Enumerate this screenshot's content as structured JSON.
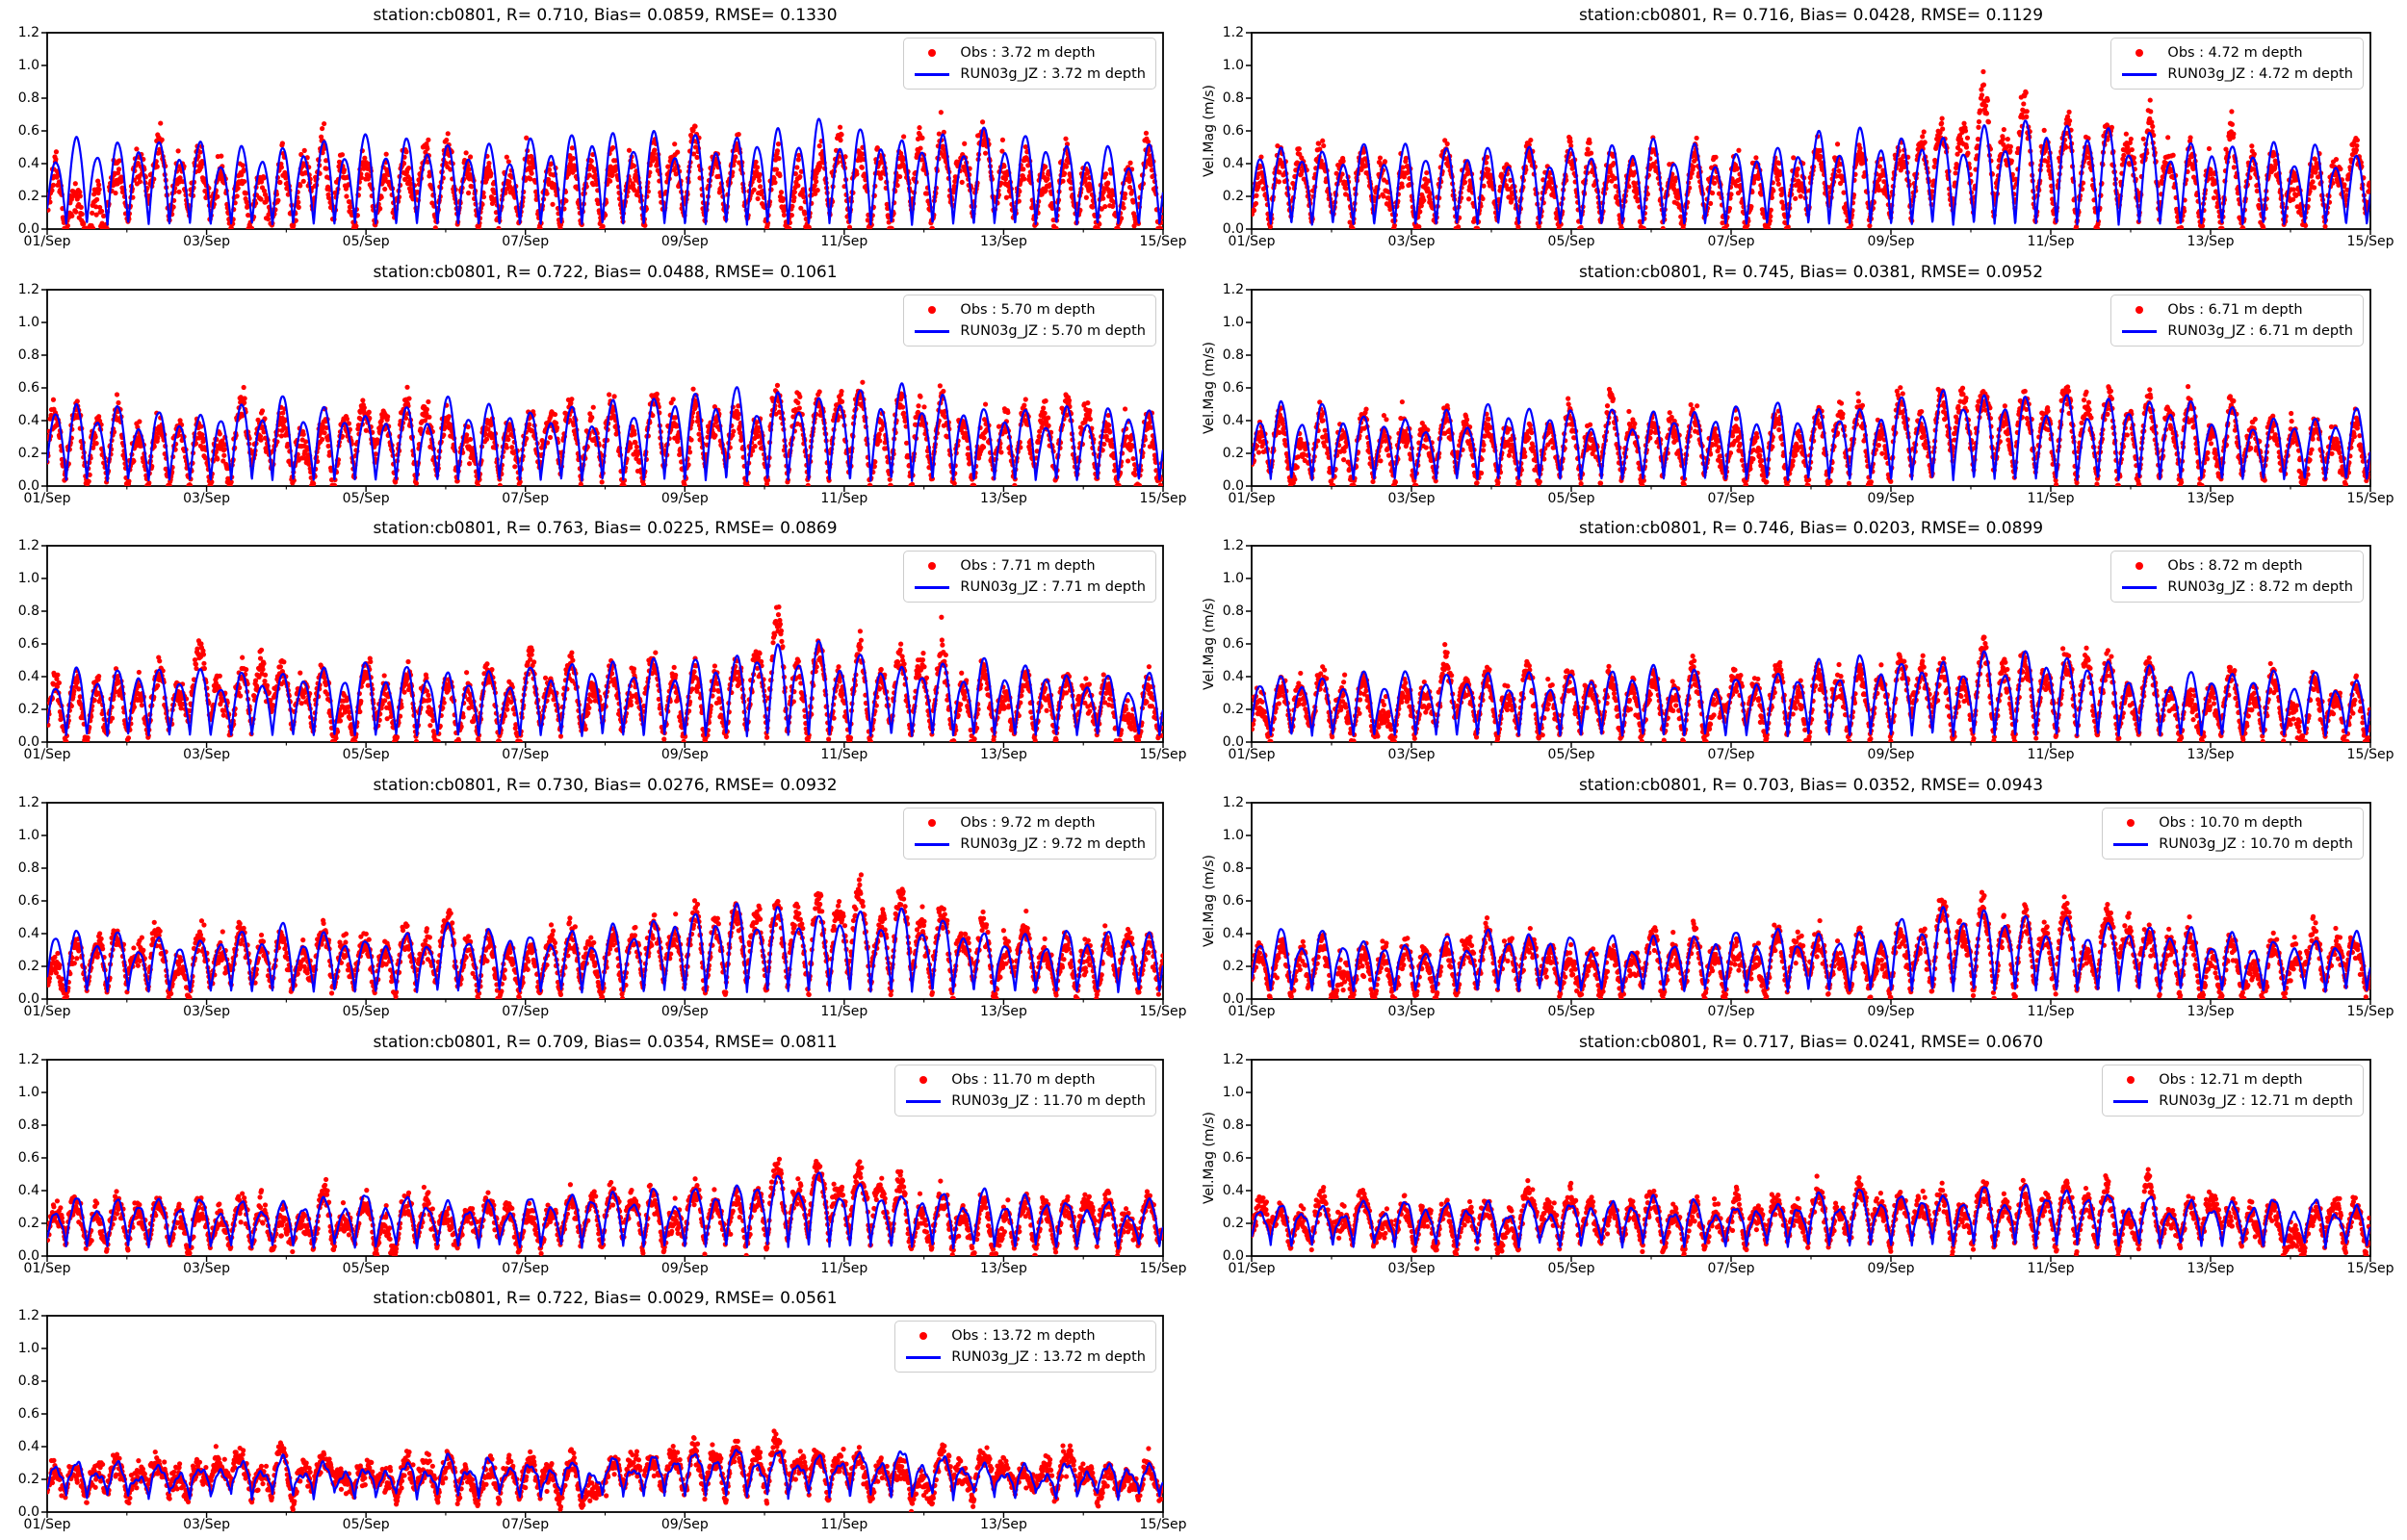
{
  "figure": {
    "background": "#ffffff",
    "colors": {
      "obs": "#ff0000",
      "model": "#0000ff",
      "spine": "#000000",
      "text": "#000000",
      "legend_border": "#cccccc"
    }
  },
  "chart_data": {
    "type": "line+scatter",
    "station": "cb0801",
    "x_ticklabels": [
      "01/Sep",
      "03/Sep",
      "05/Sep",
      "07/Sep",
      "09/Sep",
      "11/Sep",
      "13/Sep",
      "15/Sep"
    ],
    "x_major_tick_days": [
      0,
      2,
      4,
      6,
      8,
      10,
      12,
      14
    ],
    "x_minor_tick_days": [
      1,
      3,
      5,
      7,
      9,
      11,
      13
    ],
    "xlim_days": [
      0,
      14
    ],
    "y_ticklabels": [
      "0.0",
      "0.2",
      "0.4",
      "0.6",
      "0.8",
      "1.0",
      "1.2"
    ],
    "y_tick_values": [
      0.0,
      0.2,
      0.4,
      0.6,
      0.8,
      1.0,
      1.2
    ],
    "ylim": [
      0.0,
      1.2
    ],
    "ylabel_right_column": "Vel.Mag (m/s)",
    "legend_position": "upper right",
    "grid": false,
    "spring_tide_window_days": [
      8.8,
      11.6
    ],
    "plots": [
      {
        "title": "station:cb0801, R= 0.710, Bias= 0.0859, RMSE= 0.1330",
        "station": "cb0801",
        "R": 0.71,
        "Bias": 0.0859,
        "RMSE": 0.133,
        "depth_m": "3.72",
        "ylabel": "",
        "legend": {
          "obs": "Obs : 3.72 m depth",
          "model": "RUN03g_JZ : 3.72 m depth"
        },
        "series": {
          "daily_peak_approx": [
            0.58,
            0.53,
            0.5,
            0.55,
            0.52,
            0.56,
            0.53,
            0.58,
            0.6,
            0.59,
            0.62,
            0.6,
            0.56,
            0.52
          ],
          "trough_level_approx": 0.03,
          "obs_scale": 0.78,
          "shape": 1.0,
          "wiggle": 0.25,
          "noise": 0.04,
          "burst": 0.13,
          "spring_boost": 1.06,
          "seed": 11
        }
      },
      {
        "title": "station:cb0801, R= 0.716, Bias= 0.0428, RMSE= 0.1129",
        "station": "cb0801",
        "R": 0.716,
        "Bias": 0.0428,
        "RMSE": 0.1129,
        "depth_m": "4.72",
        "ylabel": "Vel.Mag (m/s)",
        "legend": {
          "obs": "Obs : 4.72 m depth",
          "model": "RUN03g_JZ : 4.72 m depth"
        },
        "series": {
          "daily_peak_approx": [
            0.55,
            0.51,
            0.48,
            0.52,
            0.5,
            0.52,
            0.5,
            0.55,
            0.58,
            0.62,
            0.64,
            0.6,
            0.54,
            0.48
          ],
          "trough_level_approx": 0.03,
          "obs_scale": 0.88,
          "shape": 1.0,
          "wiggle": 0.25,
          "noise": 0.036,
          "burst": 0.13,
          "spring_boost": 1.18,
          "seed": 22
        }
      },
      {
        "title": "station:cb0801, R= 0.722, Bias= 0.0488, RMSE= 0.1061",
        "station": "cb0801",
        "R": 0.722,
        "Bias": 0.0488,
        "RMSE": 0.1061,
        "depth_m": "5.70",
        "ylabel": "",
        "legend": {
          "obs": "Obs : 5.70 m depth",
          "model": "RUN03g_JZ : 5.70 m depth"
        },
        "series": {
          "daily_peak_approx": [
            0.5,
            0.48,
            0.46,
            0.5,
            0.48,
            0.5,
            0.47,
            0.52,
            0.55,
            0.58,
            0.6,
            0.55,
            0.5,
            0.46
          ],
          "trough_level_approx": 0.035,
          "obs_scale": 0.87,
          "shape": 0.95,
          "wiggle": 0.3,
          "noise": 0.034,
          "burst": 0.12,
          "spring_boost": 1.08,
          "seed": 33
        }
      },
      {
        "title": "station:cb0801, R= 0.745, Bias= 0.0381, RMSE= 0.0952",
        "station": "cb0801",
        "R": 0.745,
        "Bias": 0.0381,
        "RMSE": 0.0952,
        "depth_m": "6.71",
        "ylabel": "Vel.Mag (m/s)",
        "legend": {
          "obs": "Obs : 6.71 m depth",
          "model": "RUN03g_JZ : 6.71 m depth"
        },
        "series": {
          "daily_peak_approx": [
            0.48,
            0.46,
            0.44,
            0.48,
            0.46,
            0.48,
            0.45,
            0.5,
            0.52,
            0.55,
            0.58,
            0.52,
            0.48,
            0.44
          ],
          "trough_level_approx": 0.04,
          "obs_scale": 0.9,
          "shape": 0.95,
          "wiggle": 0.3,
          "noise": 0.032,
          "burst": 0.11,
          "spring_boost": 1.08,
          "seed": 44
        }
      },
      {
        "title": "station:cb0801, R= 0.763, Bias= 0.0225, RMSE= 0.0869",
        "station": "cb0801",
        "R": 0.763,
        "Bias": 0.0225,
        "RMSE": 0.0869,
        "depth_m": "7.71",
        "ylabel": "",
        "legend": {
          "obs": "Obs : 7.71 m depth",
          "model": "RUN03g_JZ : 7.71 m depth"
        },
        "series": {
          "daily_peak_approx": [
            0.46,
            0.44,
            0.42,
            0.46,
            0.44,
            0.46,
            0.44,
            0.48,
            0.52,
            0.58,
            0.55,
            0.5,
            0.46,
            0.42
          ],
          "trough_level_approx": 0.04,
          "obs_scale": 0.92,
          "shape": 0.95,
          "wiggle": 0.35,
          "noise": 0.032,
          "burst": 0.12,
          "spring_boost": 1.15,
          "seed": 55
        }
      },
      {
        "title": "station:cb0801, R= 0.746, Bias= 0.0203, RMSE= 0.0899",
        "station": "cb0801",
        "R": 0.746,
        "Bias": 0.0203,
        "RMSE": 0.0899,
        "depth_m": "8.72",
        "ylabel": "Vel.Mag (m/s)",
        "legend": {
          "obs": "Obs : 8.72 m depth",
          "model": "RUN03g_JZ : 8.72 m depth"
        },
        "series": {
          "daily_peak_approx": [
            0.44,
            0.42,
            0.4,
            0.44,
            0.42,
            0.44,
            0.42,
            0.46,
            0.5,
            0.55,
            0.52,
            0.48,
            0.44,
            0.4
          ],
          "trough_level_approx": 0.04,
          "obs_scale": 0.92,
          "shape": 0.92,
          "wiggle": 0.35,
          "noise": 0.03,
          "burst": 0.11,
          "spring_boost": 1.08,
          "seed": 66
        }
      },
      {
        "title": "station:cb0801, R= 0.730, Bias= 0.0276, RMSE= 0.0932",
        "station": "cb0801",
        "R": 0.73,
        "Bias": 0.0276,
        "RMSE": 0.0932,
        "depth_m": "9.72",
        "ylabel": "",
        "legend": {
          "obs": "Obs : 9.72 m depth",
          "model": "RUN03g_JZ : 9.72 m depth"
        },
        "series": {
          "daily_peak_approx": [
            0.42,
            0.4,
            0.38,
            0.42,
            0.4,
            0.42,
            0.4,
            0.45,
            0.5,
            0.58,
            0.55,
            0.48,
            0.42,
            0.4
          ],
          "trough_level_approx": 0.045,
          "obs_scale": 0.9,
          "shape": 0.9,
          "wiggle": 0.4,
          "noise": 0.03,
          "burst": 0.12,
          "spring_boost": 1.18,
          "seed": 77
        }
      },
      {
        "title": "station:cb0801, R= 0.703, Bias= 0.0352, RMSE= 0.0943",
        "station": "cb0801",
        "R": 0.703,
        "Bias": 0.0352,
        "RMSE": 0.0943,
        "depth_m": "10.70",
        "ylabel": "Vel.Mag (m/s)",
        "legend": {
          "obs": "Obs : 10.70 m depth",
          "model": "RUN03g_JZ : 10.70 m depth"
        },
        "series": {
          "daily_peak_approx": [
            0.4,
            0.38,
            0.36,
            0.4,
            0.38,
            0.4,
            0.38,
            0.42,
            0.46,
            0.55,
            0.52,
            0.45,
            0.4,
            0.38
          ],
          "trough_level_approx": 0.05,
          "obs_scale": 0.9,
          "shape": 0.9,
          "wiggle": 0.45,
          "noise": 0.03,
          "burst": 0.11,
          "spring_boost": 1.12,
          "seed": 88
        }
      },
      {
        "title": "station:cb0801, R= 0.709, Bias= 0.0354, RMSE= 0.0811",
        "station": "cb0801",
        "R": 0.709,
        "Bias": 0.0354,
        "RMSE": 0.0811,
        "depth_m": "11.70",
        "ylabel": "",
        "legend": {
          "obs": "Obs : 11.70 m depth",
          "model": "RUN03g_JZ : 11.70 m depth"
        },
        "series": {
          "daily_peak_approx": [
            0.36,
            0.34,
            0.33,
            0.36,
            0.34,
            0.36,
            0.34,
            0.38,
            0.42,
            0.48,
            0.45,
            0.4,
            0.36,
            0.34
          ],
          "trough_level_approx": 0.055,
          "obs_scale": 0.9,
          "shape": 0.85,
          "wiggle": 0.6,
          "noise": 0.028,
          "burst": 0.11,
          "spring_boost": 1.12,
          "seed": 99
        }
      },
      {
        "title": "station:cb0801, R= 0.717, Bias= 0.0241, RMSE= 0.0670",
        "station": "cb0801",
        "R": 0.717,
        "Bias": 0.0241,
        "RMSE": 0.067,
        "depth_m": "12.71",
        "ylabel": "Vel.Mag (m/s)",
        "legend": {
          "obs": "Obs : 12.71 m depth",
          "model": "RUN03g_JZ : 12.71 m depth"
        },
        "series": {
          "daily_peak_approx": [
            0.34,
            0.32,
            0.31,
            0.34,
            0.32,
            0.34,
            0.32,
            0.35,
            0.38,
            0.42,
            0.4,
            0.37,
            0.34,
            0.32
          ],
          "trough_level_approx": 0.06,
          "obs_scale": 0.94,
          "shape": 0.8,
          "wiggle": 0.7,
          "noise": 0.026,
          "burst": 0.09,
          "spring_boost": 1.08,
          "seed": 110
        }
      },
      {
        "title": "station:cb0801, R= 0.722, Bias= 0.0029, RMSE= 0.0561",
        "station": "cb0801",
        "R": 0.722,
        "Bias": 0.0029,
        "RMSE": 0.0561,
        "depth_m": "13.72",
        "ylabel": "",
        "legend": {
          "obs": "Obs : 13.72 m depth",
          "model": "RUN03g_JZ : 13.72 m depth"
        },
        "series": {
          "daily_peak_approx": [
            0.3,
            0.29,
            0.28,
            0.3,
            0.29,
            0.31,
            0.3,
            0.32,
            0.34,
            0.38,
            0.36,
            0.33,
            0.3,
            0.28
          ],
          "trough_level_approx": 0.09,
          "obs_scale": 0.99,
          "shape": 0.7,
          "wiggle": 1.0,
          "noise": 0.026,
          "burst": 0.08,
          "spring_boost": 1.05,
          "seed": 121
        }
      }
    ]
  }
}
